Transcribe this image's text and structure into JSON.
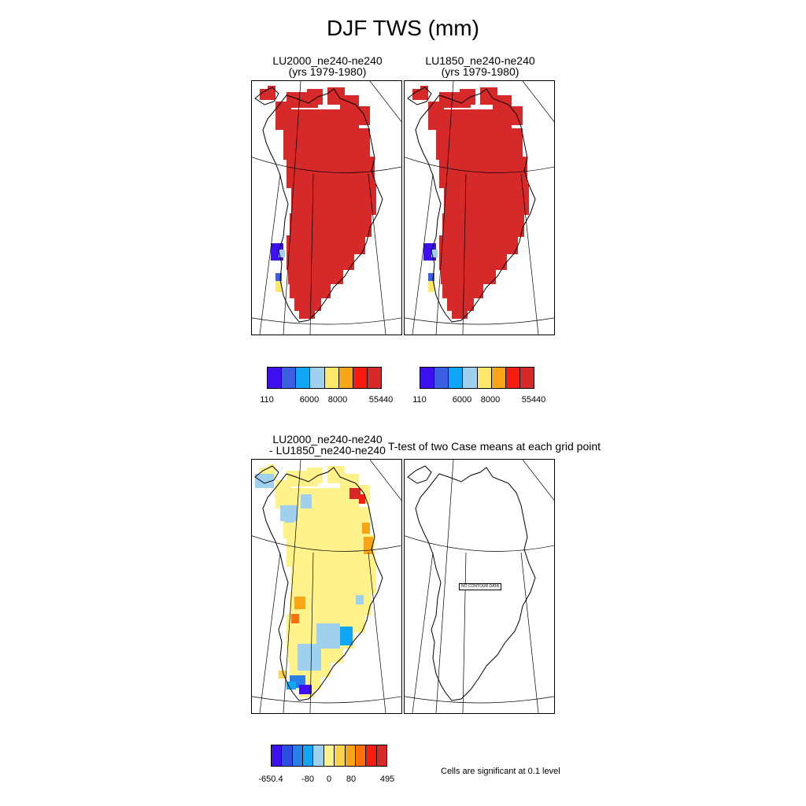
{
  "title": "DJF TWS (mm)",
  "panels": {
    "p1": {
      "title_line1": "LU2000_ne240-ne240",
      "title_line2": "(yrs 1979-1980)"
    },
    "p2": {
      "title_line1": "LU1850_ne240-ne240",
      "title_line2": "(yrs 1979-1980)"
    },
    "p3": {
      "title_line1": "LU2000_ne240-ne240",
      "title_line2": "- LU1850_ne240-ne240"
    },
    "p4": {
      "title_line1": "T-test of two Case means at each grid point",
      "no_data_label": "NO CONTOUR DATA"
    }
  },
  "colorbars": {
    "abs": {
      "colors": [
        "#3d10f0",
        "#3b5fe0",
        "#0ea6f5",
        "#9fd0ee",
        "#fde86a",
        "#f8a618",
        "#f71c0e",
        "#d62a2a"
      ],
      "labels": [
        "110",
        "6000",
        "8000",
        "55440"
      ]
    },
    "diff": {
      "colors": [
        "#3d10f0",
        "#2a4fe0",
        "#2a7ee8",
        "#0ea6f5",
        "#9fd0ee",
        "#fff28a",
        "#fdd24c",
        "#f8a618",
        "#ff6f0a",
        "#f71c0e",
        "#d62a2a"
      ],
      "labels": [
        "-650.4",
        "-80",
        "0",
        "80",
        "495"
      ]
    }
  },
  "footnote": "Cells are significant at 0.1 level"
}
